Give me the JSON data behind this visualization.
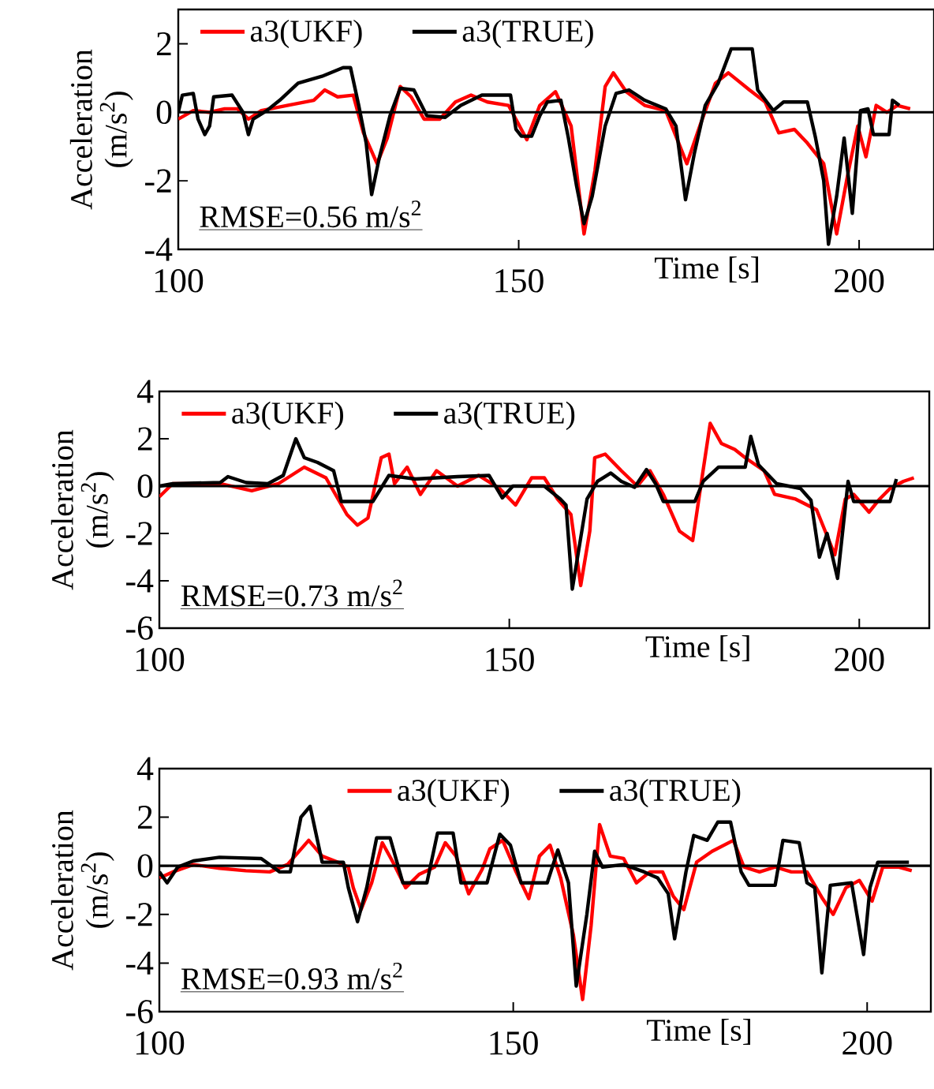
{
  "chart_data": [
    {
      "type": "line",
      "xlabel": "Time [s]",
      "ylabel": "Acceleration (m/s$^{2}$)",
      "xlim": [
        100,
        211
      ],
      "ylim": [
        -4,
        3
      ],
      "xticks": [
        100,
        150,
        200
      ],
      "yticks": [
        -4,
        -2,
        0,
        2
      ],
      "legend": "top left",
      "annotations": [
        "RMSE=0.56 m/s$^{2}$"
      ],
      "ref_lines": [
        {
          "axis": "y",
          "value": 0,
          "color": "#000000"
        }
      ],
      "series": [
        {
          "name": "a3(UKF)",
          "color": "#ff0000",
          "x": [
            100,
            102.2,
            104.5,
            106.8,
            108.7,
            110.3,
            112.2,
            116.0,
            119.9,
            121.5,
            123.4,
            125.7,
            127.2,
            129.2,
            130.7,
            132.6,
            134.2,
            136.1,
            138.4,
            140.7,
            143.0,
            145.4,
            148.5,
            151.2,
            153.1,
            155.4,
            157.7,
            159.6,
            161.2,
            162.7,
            163.9,
            165.8,
            168.5,
            171.6,
            174.7,
            176.6,
            178.9,
            180.8,
            183.9,
            186.2,
            188.2,
            190.5,
            192.4,
            194.8,
            196.7,
            198.3,
            199.8,
            201.0,
            202.5,
            204.1,
            205.6,
            207.5
          ],
          "values": [
            -0.2,
            0.05,
            0,
            0.1,
            0.1,
            -0.2,
            0.05,
            0.2,
            0.35,
            0.65,
            0.45,
            0.5,
            -0.6,
            -1.5,
            -0.75,
            0.75,
            0.45,
            -0.2,
            -0.2,
            0.3,
            0.5,
            0.3,
            0.2,
            -0.8,
            0.2,
            0.6,
            -0.4,
            -3.55,
            -1.7,
            0.75,
            1.15,
            0.6,
            0.2,
            0.05,
            -1.5,
            -0.4,
            0.85,
            1.15,
            0.65,
            0.3,
            -0.6,
            -0.5,
            -0.9,
            -1.5,
            -3.55,
            -1.85,
            -0.4,
            -1.3,
            0.2,
            0,
            0.2,
            0.1
          ]
        },
        {
          "name": "a3(TRUE)",
          "color": "#000000",
          "x": [
            100,
            100.6,
            102.2,
            102.9,
            103.9,
            104.6,
            105.2,
            107.9,
            109.5,
            110.3,
            111.0,
            113,
            114.9,
            117.6,
            121.1,
            124.2,
            125.3,
            126.5,
            127.6,
            128.4,
            129.5,
            131.1,
            132.6,
            134.6,
            136.5,
            139.2,
            141.5,
            144.6,
            148.8,
            149.6,
            150.4,
            151.9,
            153.1,
            154.2,
            156.2,
            157.3,
            158.5,
            159.6,
            160.8,
            162.7,
            164.3,
            166.2,
            168.5,
            171.6,
            173.1,
            174.5,
            175.8,
            177.4,
            179.3,
            181.2,
            184.3,
            185.1,
            187.4,
            188.9,
            192.4,
            193.6,
            194.8,
            195.5,
            196.7,
            197.8,
            199.0,
            200.2,
            201.3,
            202.1,
            204.4,
            204.9,
            205.9
          ],
          "values": [
            0,
            0.5,
            0.55,
            -0.2,
            -0.65,
            -0.4,
            0.45,
            0.5,
            0,
            -0.65,
            -0.2,
            0.05,
            0.35,
            0.85,
            1.05,
            1.3,
            1.3,
            0.2,
            -0.9,
            -2.4,
            -1.35,
            -0.1,
            0.7,
            0.65,
            -0.1,
            -0.15,
            0.2,
            0.5,
            0.5,
            -0.5,
            -0.7,
            -0.7,
            -0.1,
            0.3,
            0.35,
            -0.75,
            -2.15,
            -3.25,
            -2.45,
            -0.4,
            0.55,
            0.65,
            0.35,
            0.1,
            -0.4,
            -2.55,
            -1.2,
            0.2,
            0.85,
            1.85,
            1.85,
            0.65,
            0.05,
            0.3,
            0.3,
            -0.75,
            -2.0,
            -3.85,
            -2.45,
            -0.75,
            -2.95,
            0.05,
            0.1,
            -0.65,
            -0.65,
            0.35,
            0.2
          ]
        }
      ]
    },
    {
      "type": "line",
      "xlabel": "Time [s]",
      "ylabel": "Acceleration (m/s$^{2}$)",
      "xlim": [
        100,
        210
      ],
      "ylim": [
        -6,
        4
      ],
      "xticks": [
        100,
        150,
        200
      ],
      "yticks": [
        -6,
        -4,
        -2,
        0,
        2,
        4
      ],
      "legend": "top left",
      "annotations": [
        "RMSE=0.73 m/s$^{2}$"
      ],
      "ref_lines": [
        {
          "axis": "y",
          "value": 0,
          "color": "#000000"
        }
      ],
      "series": [
        {
          "name": "a3(UKF)",
          "color": "#ff0000",
          "x": [
            100,
            101.9,
            108.7,
            113.2,
            117.0,
            120.7,
            123.8,
            126.8,
            128.3,
            129.8,
            131.7,
            132.8,
            133.6,
            135.4,
            137.3,
            139.6,
            142.6,
            145.6,
            148.6,
            150.9,
            153.2,
            155.0,
            156.9,
            158.8,
            160.2,
            161.5,
            162.2,
            163.7,
            166.0,
            168.3,
            170.1,
            172.0,
            174.3,
            176.2,
            177.3,
            178.7,
            180.3,
            182.2,
            183.7,
            186.4,
            187.9,
            190.9,
            193.9,
            195.4,
            196.5,
            198.0,
            199.2,
            201.4,
            202.9,
            204.4,
            206.3,
            207.8
          ],
          "values": [
            -0.45,
            0.1,
            0.1,
            -0.2,
            0.1,
            0.8,
            0.35,
            -1.2,
            -1.65,
            -1.35,
            1.2,
            1.35,
            0.1,
            0.8,
            -0.35,
            0.65,
            0,
            0.45,
            -0.1,
            -0.8,
            0.35,
            0.35,
            -0.55,
            -1.2,
            -4.2,
            -1.9,
            1.2,
            1.35,
            0.65,
            0,
            0.65,
            -0.35,
            -1.9,
            -2.3,
            -0.1,
            2.65,
            1.8,
            1.55,
            1.2,
            0.65,
            -0.35,
            -0.55,
            -1.0,
            -2.1,
            -2.9,
            -0.55,
            -0.35,
            -1.1,
            -0.55,
            -0.1,
            0.2,
            0.35
          ]
        },
        {
          "name": "a3(TRUE)",
          "color": "#000000",
          "x": [
            100,
            101.9,
            108.7,
            109.8,
            112.4,
            115.5,
            117.7,
            119.5,
            120.7,
            122.6,
            124.9,
            126.0,
            130.5,
            132.8,
            136.6,
            142.6,
            147.1,
            149.0,
            150.5,
            155.0,
            157.3,
            158.1,
            159.0,
            160.0,
            161.1,
            162.6,
            164.5,
            166.0,
            167.9,
            169.6,
            170.9,
            172.0,
            176.5,
            177.7,
            179.9,
            183.7,
            184.5,
            185.6,
            188.2,
            191.6,
            193.1,
            194.3,
            195.4,
            196.9,
            198.4,
            199.2,
            204.4,
            205.3
          ],
          "values": [
            0,
            0.1,
            0.15,
            0.4,
            0.15,
            0.1,
            0.45,
            2.0,
            1.2,
            1.0,
            0.65,
            -0.65,
            -0.65,
            0.45,
            0.3,
            0.4,
            0.45,
            -0.5,
            0,
            0,
            -0.55,
            -0.8,
            -4.35,
            -2.55,
            -0.55,
            0.2,
            0.55,
            0.2,
            -0.05,
            0.7,
            0.1,
            -0.65,
            -0.65,
            0.2,
            0.8,
            0.8,
            2.1,
            0.9,
            0.1,
            -0.1,
            -0.6,
            -3.0,
            -2.0,
            -3.9,
            0.2,
            -0.65,
            -0.65,
            0.3
          ]
        }
      ]
    },
    {
      "type": "line",
      "xlabel": "Time [s]",
      "ylabel": "Acceleration (m/s$^{2}$)",
      "xlim": [
        100,
        209
      ],
      "ylim": [
        -6,
        4
      ],
      "xticks": [
        100,
        150,
        200
      ],
      "yticks": [
        -6,
        -4,
        -2,
        0,
        2,
        4
      ],
      "legend": "top",
      "annotations": [
        "RMSE=0.93 m/s$^{2}$"
      ],
      "ref_lines": [
        {
          "axis": "y",
          "value": 0,
          "color": "#000000"
        }
      ],
      "series": [
        {
          "name": "a3(UKF)",
          "color": "#ff0000",
          "x": [
            100,
            101.9,
            104.8,
            108.5,
            112.2,
            115.6,
            118.1,
            121.1,
            123.0,
            125.2,
            126.7,
            127.4,
            128.5,
            130.0,
            131.5,
            133.0,
            134.8,
            136.7,
            138.9,
            140.4,
            141.9,
            143.7,
            145.6,
            146.7,
            148.5,
            150.4,
            152.2,
            153.7,
            155.2,
            156.7,
            158.5,
            159.8,
            161.0,
            162.2,
            163.7,
            165.6,
            167.4,
            169.3,
            171.1,
            172.6,
            174.1,
            175.9,
            178.1,
            181.1,
            182.6,
            184.8,
            187.0,
            189.3,
            191.5,
            193.7,
            195.2,
            197.0,
            198.9,
            200.7,
            202.2,
            204.4,
            206.3
          ],
          "values": [
            -0.5,
            -0.25,
            0.05,
            -0.1,
            -0.2,
            -0.25,
            0.05,
            1.05,
            0.4,
            0.15,
            -0.05,
            -0.9,
            -1.8,
            -0.7,
            0.95,
            0.15,
            -0.9,
            -0.35,
            -0.05,
            0.95,
            0.4,
            -1.15,
            -0.15,
            0.7,
            1.05,
            -0.25,
            -1.35,
            0.4,
            0.85,
            -0.5,
            -2.85,
            -5.5,
            -2.45,
            1.7,
            0.4,
            0.3,
            -0.7,
            -0.25,
            -0.25,
            -1.25,
            -1.8,
            0.15,
            0.6,
            1.05,
            -0.05,
            -0.25,
            -0.05,
            -0.25,
            -0.25,
            -1.35,
            -2.0,
            -0.9,
            -0.6,
            -1.45,
            -0.05,
            -0.05,
            -0.2
          ]
        },
        {
          "name": "a3(TRUE)",
          "color": "#000000",
          "x": [
            100,
            101.1,
            102.6,
            104.8,
            108.5,
            114.4,
            117.0,
            118.5,
            120.0,
            121.3,
            123.0,
            126.0,
            126.7,
            128.0,
            129.3,
            130.7,
            132.6,
            134.4,
            137.8,
            139.3,
            141.5,
            142.6,
            146.3,
            148.1,
            149.6,
            151.1,
            154.8,
            156.3,
            157.8,
            158.9,
            160.4,
            161.5,
            162.6,
            165.6,
            168.5,
            170.4,
            171.9,
            172.8,
            174.4,
            175.5,
            177.4,
            178.9,
            180.7,
            182.2,
            183.3,
            187.0,
            188.1,
            190.4,
            191.5,
            192.6,
            193.6,
            194.8,
            197.8,
            199.5,
            200.4,
            201.5,
            205.9
          ],
          "values": [
            -0.25,
            -0.7,
            -0.05,
            0.2,
            0.35,
            0.3,
            -0.25,
            -0.25,
            2.0,
            2.45,
            0.15,
            0.15,
            -0.9,
            -2.3,
            -0.9,
            1.15,
            1.15,
            -0.7,
            -0.7,
            1.35,
            1.35,
            -0.7,
            -0.7,
            1.3,
            0.85,
            -0.7,
            -0.7,
            0.65,
            -0.7,
            -4.95,
            -2.0,
            0.6,
            -0.05,
            0.05,
            -0.25,
            -0.5,
            -1.15,
            -3.0,
            -0.25,
            1.25,
            1.05,
            1.8,
            1.8,
            -0.25,
            -0.8,
            -0.8,
            1.05,
            0.95,
            -0.7,
            -0.9,
            -4.4,
            -0.8,
            -0.7,
            -3.65,
            -0.9,
            0.15,
            0.15
          ]
        }
      ]
    }
  ]
}
